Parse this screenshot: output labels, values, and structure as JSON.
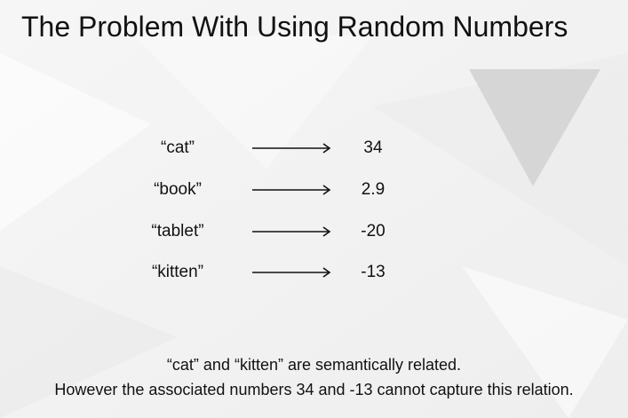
{
  "slide": {
    "title": "The Problem With Using Random Numbers",
    "mappings": [
      {
        "word": "“cat”",
        "number": "34"
      },
      {
        "word": "“book”",
        "number": "2.9"
      },
      {
        "word": "“tablet”",
        "number": "-20"
      },
      {
        "word": "“kitten”",
        "number": "-13"
      }
    ],
    "caption": {
      "line1": "“cat” and “kitten” are semantically related.",
      "line2": "However the associated numbers 34 and -13 cannot capture this relation."
    }
  },
  "colors": {
    "background": "#f3f3f3",
    "text": "#111111",
    "decoration": "#d9d9d9"
  },
  "icons": {
    "arrow": "right-arrow-icon"
  }
}
